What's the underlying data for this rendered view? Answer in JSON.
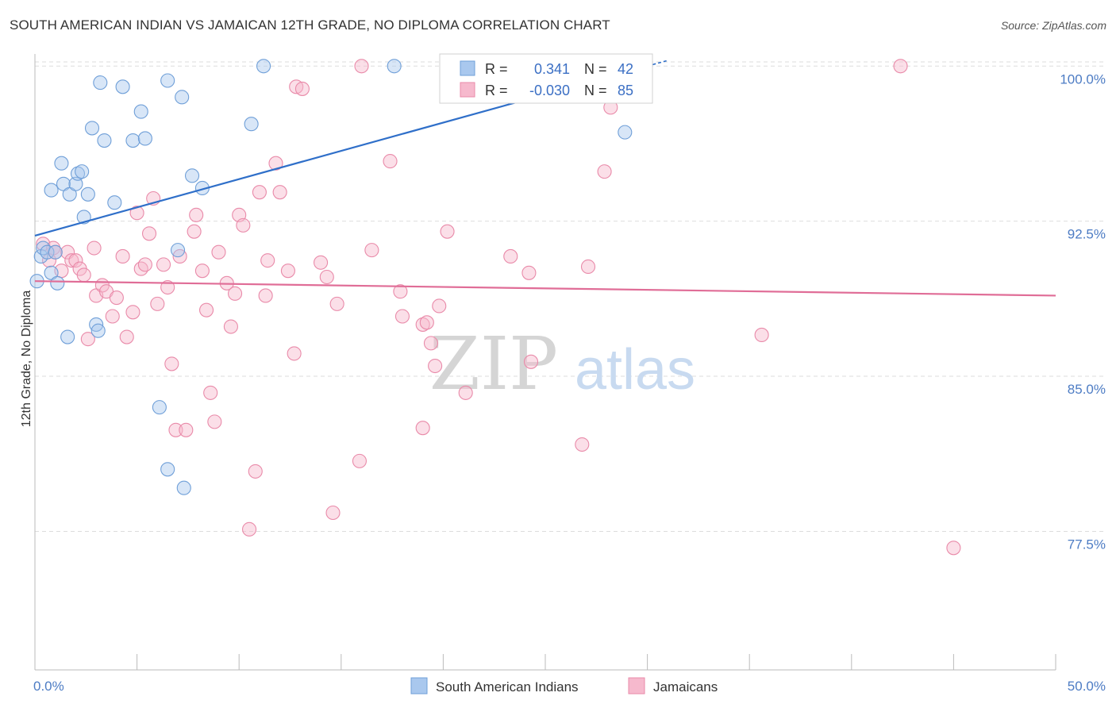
{
  "title": "SOUTH AMERICAN INDIAN VS JAMAICAN 12TH GRADE, NO DIPLOMA CORRELATION CHART",
  "source": "Source: ZipAtlas.com",
  "watermark": {
    "zip": "ZIP",
    "atlas": "atlas"
  },
  "colors": {
    "blue_fill": "#a9c8ee",
    "blue_stroke": "#6f9fd8",
    "blue_line": "#2f6fc9",
    "pink_fill": "#f6b9cd",
    "pink_stroke": "#e98aa9",
    "pink_line": "#e06d97",
    "grid": "#dddddd",
    "tick_text": "#4d7cc4"
  },
  "legend_stats": {
    "r_label": "R =",
    "n_label": "N =",
    "rows": [
      {
        "r": "0.341",
        "n": "42",
        "color": "blue"
      },
      {
        "r": "-0.030",
        "n": "85",
        "color": "pink"
      }
    ]
  },
  "chart_data": {
    "type": "scatter",
    "xlabel": "",
    "ylabel": "12th Grade, No Diploma",
    "xlim": [
      0,
      50
    ],
    "ylim": [
      70.8,
      101.2
    ],
    "x_ticks": [
      {
        "value": 0,
        "label": "0.0%"
      },
      {
        "value": 50,
        "label": "50.0%"
      }
    ],
    "x_minor_ticks": [
      5,
      10,
      15,
      20,
      25,
      30,
      35,
      40,
      45
    ],
    "y_ticks": [
      {
        "value": 77.5,
        "label": "77.5%"
      },
      {
        "value": 85.0,
        "label": "85.0%"
      },
      {
        "value": 92.5,
        "label": "92.5%"
      },
      {
        "value": 100.0,
        "label": "100.0%"
      }
    ],
    "grid": true,
    "legend_position": "bottom",
    "series": [
      {
        "name": "South American Indians",
        "color": "blue",
        "trend": {
          "x": [
            0,
            30
          ],
          "y": [
            91.8,
            100.0
          ]
        },
        "points": [
          [
            0.1,
            89.6
          ],
          [
            0.3,
            90.8
          ],
          [
            0.4,
            91.2
          ],
          [
            0.6,
            91.0
          ],
          [
            0.8,
            90.0
          ],
          [
            1.0,
            91.0
          ],
          [
            1.1,
            89.5
          ],
          [
            0.8,
            94.0
          ],
          [
            1.3,
            95.3
          ],
          [
            1.4,
            94.3
          ],
          [
            1.7,
            93.8
          ],
          [
            2.0,
            94.3
          ],
          [
            2.1,
            94.8
          ],
          [
            2.3,
            94.9
          ],
          [
            2.4,
            92.7
          ],
          [
            2.6,
            93.8
          ],
          [
            2.8,
            97.0
          ],
          [
            1.6,
            86.9
          ],
          [
            3.0,
            87.5
          ],
          [
            3.1,
            87.2
          ],
          [
            3.2,
            99.2
          ],
          [
            3.4,
            96.4
          ],
          [
            3.9,
            93.4
          ],
          [
            4.3,
            99.0
          ],
          [
            4.8,
            96.4
          ],
          [
            5.2,
            97.8
          ],
          [
            5.4,
            96.5
          ],
          [
            6.1,
            83.5
          ],
          [
            6.5,
            80.5
          ],
          [
            6.5,
            99.3
          ],
          [
            7.0,
            91.1
          ],
          [
            7.2,
            98.5
          ],
          [
            7.3,
            79.6
          ],
          [
            7.7,
            94.7
          ],
          [
            8.2,
            94.1
          ],
          [
            10.6,
            97.2
          ],
          [
            11.2,
            100.0
          ],
          [
            17.6,
            100.0
          ],
          [
            22.5,
            100.0
          ],
          [
            27.7,
            100.0
          ],
          [
            28.6,
            100.0
          ],
          [
            28.9,
            96.8
          ]
        ]
      },
      {
        "name": "Jamaicans",
        "color": "pink",
        "trend": {
          "x": [
            0,
            50
          ],
          "y": [
            89.6,
            88.9
          ]
        },
        "points": [
          [
            0.4,
            91.4
          ],
          [
            0.7,
            90.6
          ],
          [
            0.9,
            91.2
          ],
          [
            1.0,
            91.0
          ],
          [
            1.3,
            90.1
          ],
          [
            1.6,
            91.0
          ],
          [
            1.8,
            90.6
          ],
          [
            2.0,
            90.6
          ],
          [
            2.2,
            90.2
          ],
          [
            2.4,
            89.9
          ],
          [
            2.6,
            86.8
          ],
          [
            2.9,
            91.2
          ],
          [
            3.0,
            88.9
          ],
          [
            3.3,
            89.4
          ],
          [
            3.5,
            89.1
          ],
          [
            3.8,
            87.9
          ],
          [
            4.0,
            88.8
          ],
          [
            4.3,
            90.8
          ],
          [
            4.5,
            86.9
          ],
          [
            4.8,
            88.1
          ],
          [
            5.0,
            92.9
          ],
          [
            5.2,
            90.2
          ],
          [
            5.4,
            90.4
          ],
          [
            5.6,
            91.9
          ],
          [
            5.8,
            93.6
          ],
          [
            6.0,
            88.5
          ],
          [
            6.3,
            90.4
          ],
          [
            6.5,
            89.3
          ],
          [
            6.7,
            85.6
          ],
          [
            6.9,
            82.4
          ],
          [
            7.1,
            90.8
          ],
          [
            7.4,
            82.4
          ],
          [
            7.8,
            92.0
          ],
          [
            7.9,
            92.8
          ],
          [
            8.2,
            90.1
          ],
          [
            8.4,
            88.2
          ],
          [
            8.6,
            84.2
          ],
          [
            8.8,
            82.8
          ],
          [
            9.0,
            91.0
          ],
          [
            9.4,
            89.5
          ],
          [
            9.6,
            87.4
          ],
          [
            9.8,
            89.0
          ],
          [
            10.0,
            92.8
          ],
          [
            10.2,
            92.3
          ],
          [
            10.5,
            77.6
          ],
          [
            10.8,
            80.4
          ],
          [
            11.0,
            93.9
          ],
          [
            11.3,
            88.9
          ],
          [
            11.4,
            90.6
          ],
          [
            11.8,
            95.3
          ],
          [
            12.0,
            93.9
          ],
          [
            12.4,
            90.1
          ],
          [
            12.7,
            86.1
          ],
          [
            12.8,
            99.0
          ],
          [
            13.1,
            98.9
          ],
          [
            14.0,
            90.5
          ],
          [
            14.3,
            89.8
          ],
          [
            14.6,
            78.4
          ],
          [
            14.8,
            88.5
          ],
          [
            15.9,
            80.9
          ],
          [
            16.0,
            100.0
          ],
          [
            16.5,
            91.1
          ],
          [
            17.4,
            95.4
          ],
          [
            17.9,
            89.1
          ],
          [
            18.0,
            87.9
          ],
          [
            19.0,
            87.5
          ],
          [
            19.2,
            87.6
          ],
          [
            19.4,
            86.6
          ],
          [
            19.6,
            85.5
          ],
          [
            19.0,
            82.5
          ],
          [
            19.8,
            88.4
          ],
          [
            20.2,
            92.0
          ],
          [
            21.1,
            84.2
          ],
          [
            23.3,
            90.8
          ],
          [
            24.2,
            90.0
          ],
          [
            24.3,
            85.7
          ],
          [
            26.8,
            81.7
          ],
          [
            27.1,
            90.3
          ],
          [
            27.6,
            100.0
          ],
          [
            27.9,
            94.9
          ],
          [
            28.2,
            98.0
          ],
          [
            28.5,
            98.8
          ],
          [
            35.6,
            87.0
          ],
          [
            42.4,
            100.0
          ],
          [
            45.0,
            76.7
          ]
        ]
      }
    ]
  },
  "bottom_legend": [
    {
      "label": "South American Indians",
      "color": "blue"
    },
    {
      "label": "Jamaicans",
      "color": "pink"
    }
  ]
}
